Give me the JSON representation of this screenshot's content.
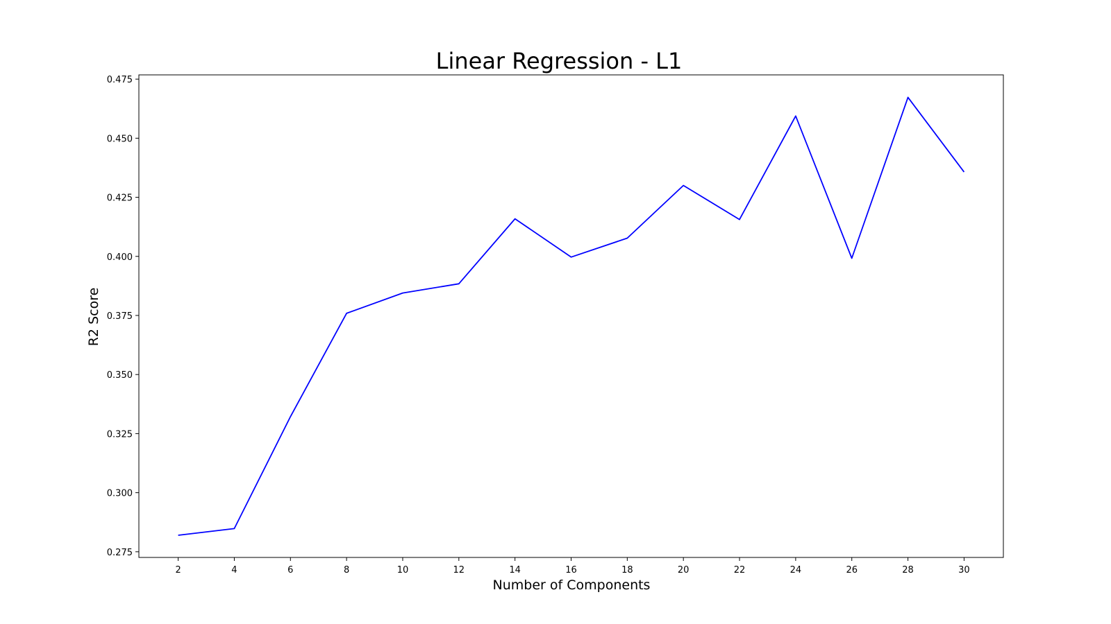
{
  "chart_data": {
    "type": "line",
    "title": "Linear Regression - L1",
    "xlabel": "Number of Components",
    "ylabel": "R2 Score",
    "x": [
      2,
      4,
      6,
      8,
      10,
      12,
      14,
      16,
      18,
      20,
      22,
      24,
      26,
      28,
      30
    ],
    "series": [
      {
        "values": [
          0.282,
          0.2848,
          0.3322,
          0.3759,
          0.3845,
          0.3884,
          0.4159,
          0.3997,
          0.4077,
          0.43,
          0.4156,
          0.4594,
          0.3992,
          0.4673,
          0.4357
        ],
        "color": "#0000ff"
      }
    ],
    "x_ticks": [
      "2",
      "4",
      "6",
      "8",
      "10",
      "12",
      "14",
      "16",
      "18",
      "20",
      "22",
      "24",
      "26",
      "28",
      "30"
    ],
    "y_ticks": [
      "0.275",
      "0.300",
      "0.325",
      "0.350",
      "0.375",
      "0.400",
      "0.425",
      "0.450",
      "0.475"
    ],
    "xlim": [
      0.6,
      31.4
    ],
    "ylim": [
      0.2726,
      0.4768
    ],
    "grid": false,
    "legend": "none"
  }
}
